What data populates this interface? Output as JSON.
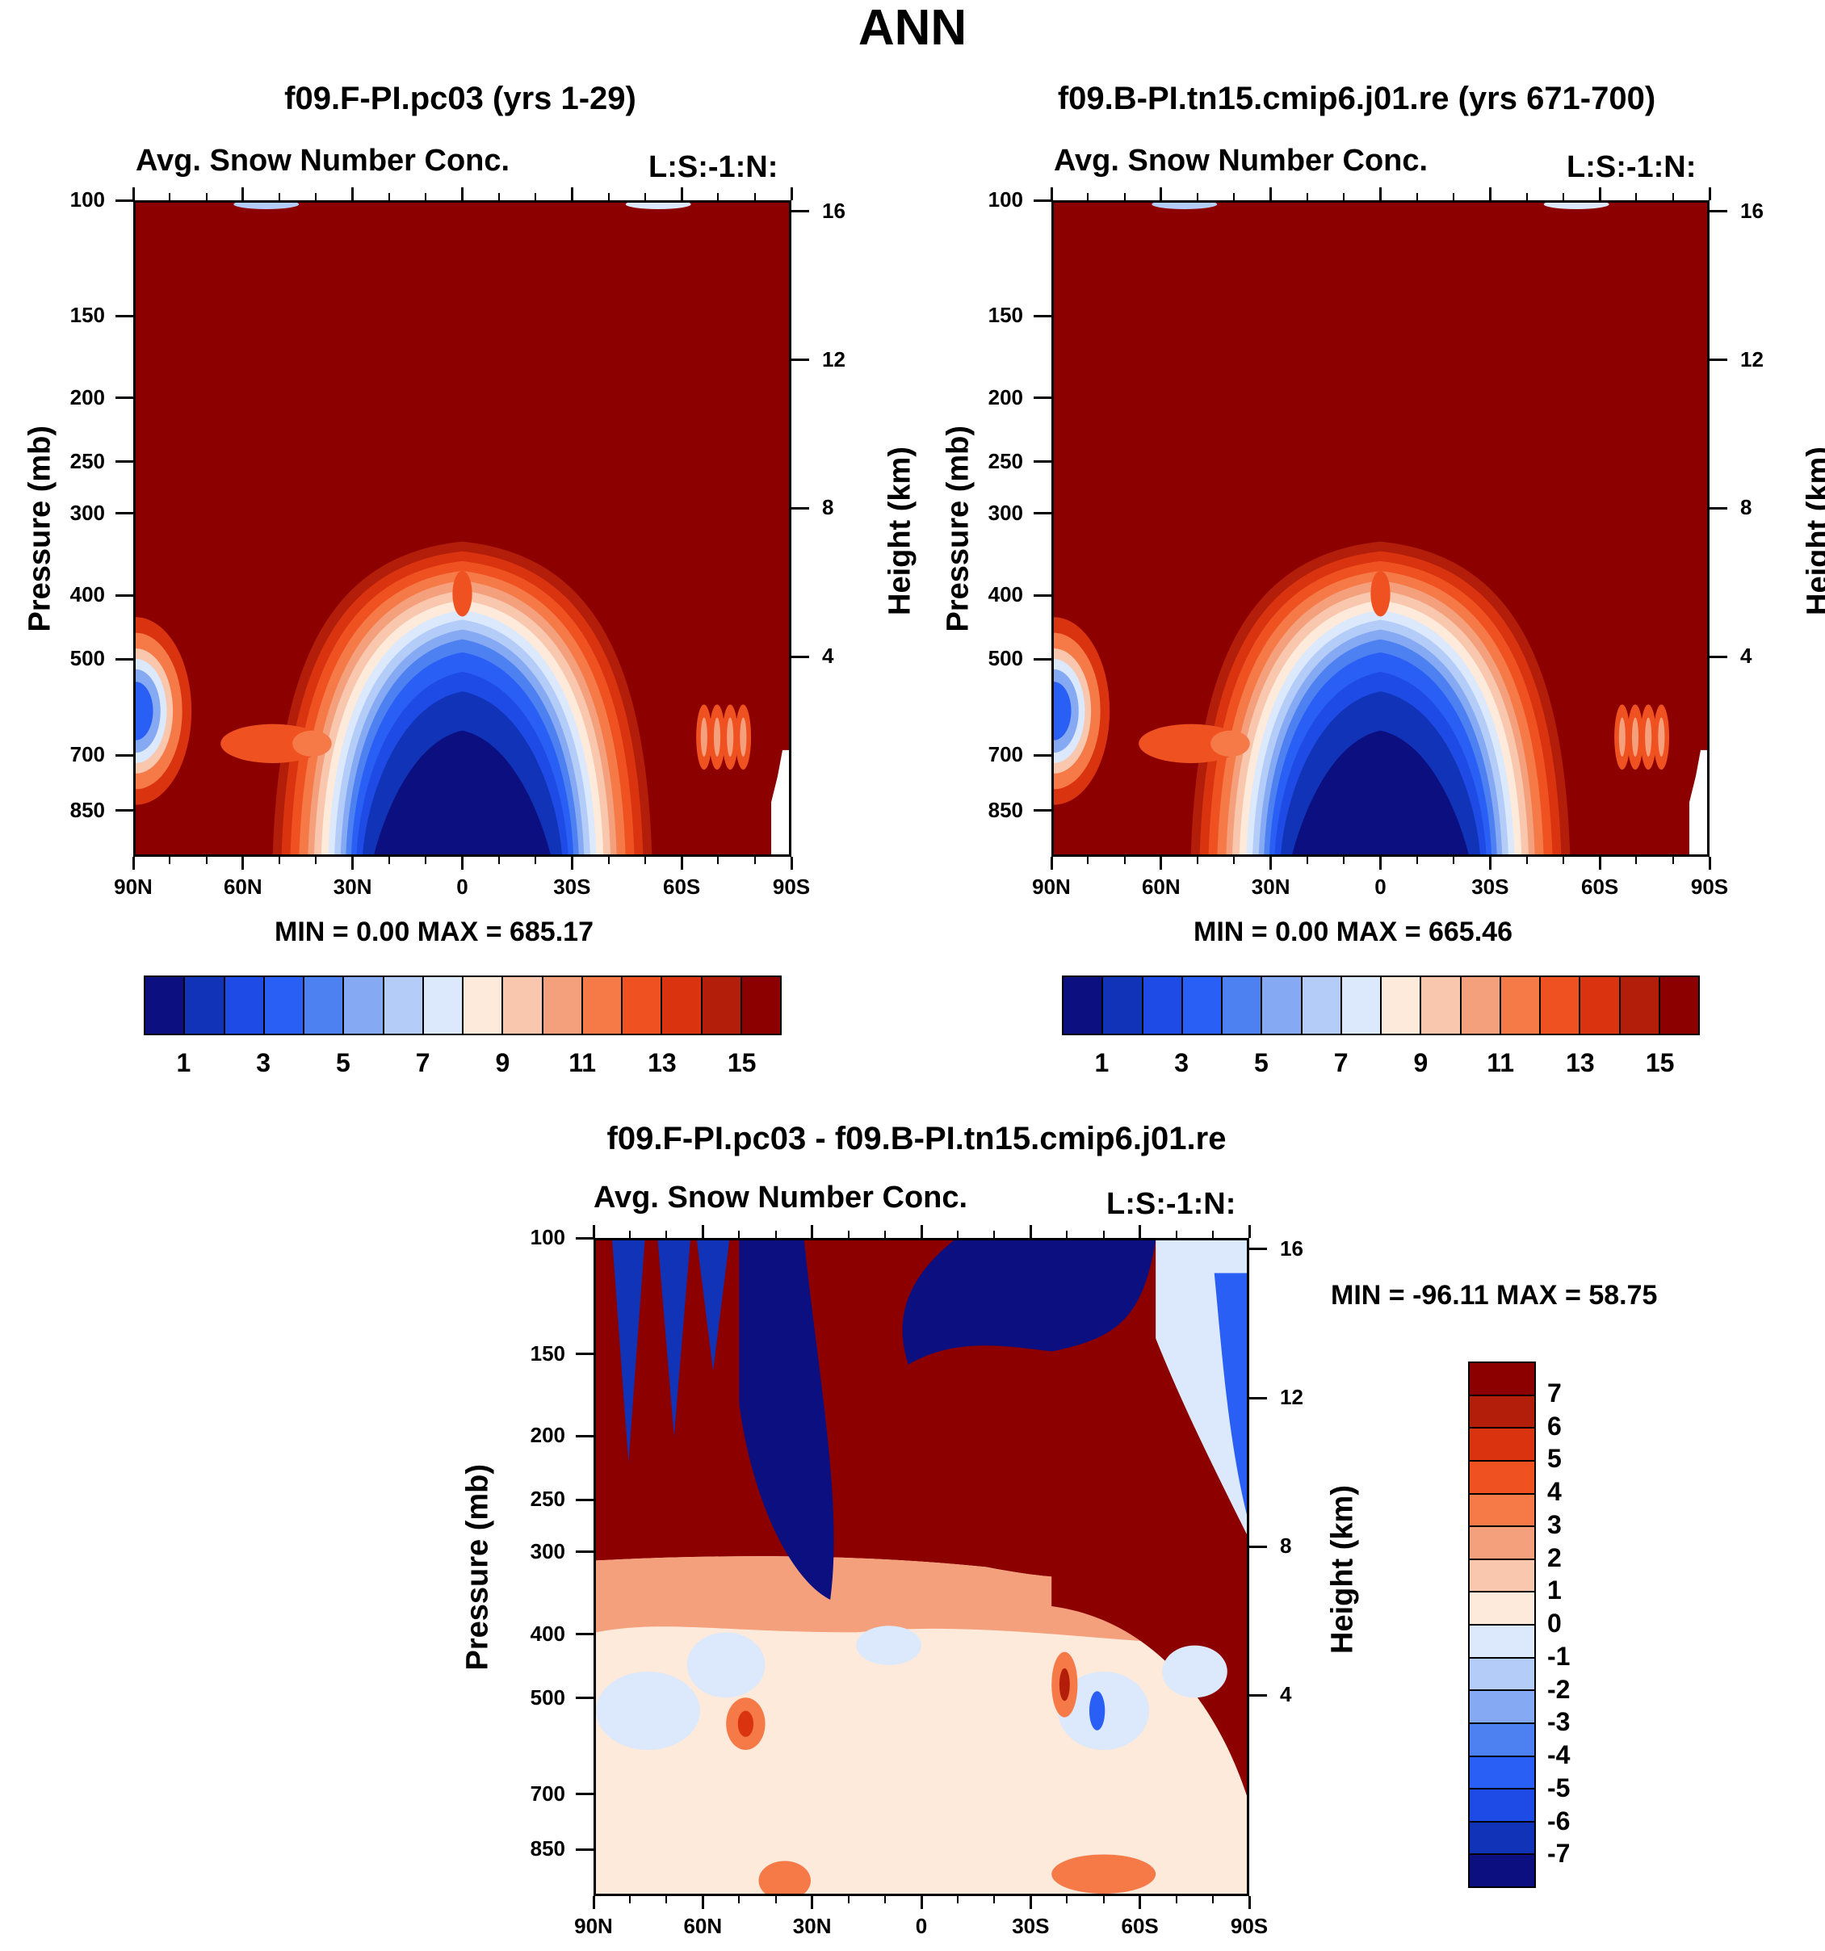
{
  "figure_title": "ANN",
  "panels": [
    {
      "id": "panel1",
      "title": "f09.F-PI.pc03 (yrs 1-29)",
      "subtitle_left": "Avg. Snow Number Conc.",
      "subtitle_right": "L:S:-1:N:",
      "min_max": "MIN =    0.00   MAX = 685.17",
      "y_label": "Pressure (mb)",
      "y2_label": "Height (km)"
    },
    {
      "id": "panel2",
      "title": "f09.B-PI.tn15.cmip6.j01.re (yrs 671-700)",
      "subtitle_left": "Avg. Snow Number Conc.",
      "subtitle_right": "L:S:-1:N:",
      "min_max": "MIN =    0.00   MAX = 665.46",
      "y_label": "Pressure (mb)",
      "y2_label": "Height (km)"
    },
    {
      "id": "panel3",
      "title": "f09.F-PI.pc03 - f09.B-PI.tn15.cmip6.j01.re",
      "subtitle_left": "Avg. Snow Number Conc.",
      "subtitle_right": "L:S:-1:N:",
      "min_max": "MIN = -96.11   MAX =  58.75",
      "y_label": "Pressure (mb)",
      "y2_label": "Height (km)"
    }
  ],
  "chart_data": [
    {
      "type": "heatmap",
      "subtype": "latitude-pressure contour",
      "title": "f09.F-PI.pc03 (yrs 1-29)",
      "variable": "Avg. Snow Number Conc.",
      "x_ticks": [
        "90N",
        "60N",
        "30N",
        "0",
        "30S",
        "60S",
        "90S"
      ],
      "y_ticks": [
        100,
        150,
        200,
        250,
        300,
        400,
        500,
        700,
        850
      ],
      "y_range": [
        100,
        1000
      ],
      "y2_ticks": [
        16,
        12,
        8,
        4
      ],
      "min": 0.0,
      "max": 685.17,
      "colorbar_levels": [
        1,
        2,
        3,
        4,
        5,
        6,
        7,
        8,
        9,
        10,
        11,
        12,
        13,
        14,
        15
      ],
      "colorbar_labels": [
        "1",
        "3",
        "5",
        "7",
        "9",
        "11",
        "13",
        "15"
      ]
    },
    {
      "type": "heatmap",
      "subtype": "latitude-pressure contour",
      "title": "f09.B-PI.tn15.cmip6.j01.re (yrs 671-700)",
      "variable": "Avg. Snow Number Conc.",
      "x_ticks": [
        "90N",
        "60N",
        "30N",
        "0",
        "30S",
        "60S",
        "90S"
      ],
      "y_ticks": [
        100,
        150,
        200,
        250,
        300,
        400,
        500,
        700,
        850
      ],
      "y_range": [
        100,
        1000
      ],
      "y2_ticks": [
        16,
        12,
        8,
        4
      ],
      "min": 0.0,
      "max": 665.46,
      "colorbar_levels": [
        1,
        2,
        3,
        4,
        5,
        6,
        7,
        8,
        9,
        10,
        11,
        12,
        13,
        14,
        15
      ],
      "colorbar_labels": [
        "1",
        "3",
        "5",
        "7",
        "9",
        "11",
        "13",
        "15"
      ]
    },
    {
      "type": "heatmap",
      "subtype": "latitude-pressure contour difference",
      "title": "f09.F-PI.pc03 - f09.B-PI.tn15.cmip6.j01.re",
      "variable": "Avg. Snow Number Conc.",
      "x_ticks": [
        "90N",
        "60N",
        "30N",
        "0",
        "30S",
        "60S",
        "90S"
      ],
      "y_ticks": [
        100,
        150,
        200,
        250,
        300,
        400,
        500,
        700,
        850
      ],
      "y_range": [
        100,
        1000
      ],
      "y2_ticks": [
        16,
        12,
        8,
        4
      ],
      "min": -96.11,
      "max": 58.75,
      "colorbar_levels": [
        7,
        6,
        5,
        4,
        3,
        2,
        1,
        0,
        -1,
        -2,
        -3,
        -4,
        -5,
        -6,
        -7
      ],
      "colorbar_labels": [
        "7",
        "6",
        "5",
        "4",
        "3",
        "2",
        "1",
        "0",
        "-1",
        "-2",
        "-3",
        "-4",
        "-5",
        "-6",
        "-7"
      ]
    }
  ],
  "colors": {
    "scale": [
      "#0b0f80",
      "#1133b8",
      "#1e4be6",
      "#2a5ff5",
      "#4d80f0",
      "#86a9f3",
      "#b4ccf8",
      "#dce8fb",
      "#fdeadb",
      "#f8c7ae",
      "#f5a07c",
      "#f57a48",
      "#ef5220",
      "#d9330f",
      "#b21e0a",
      "#8c0000"
    ]
  }
}
